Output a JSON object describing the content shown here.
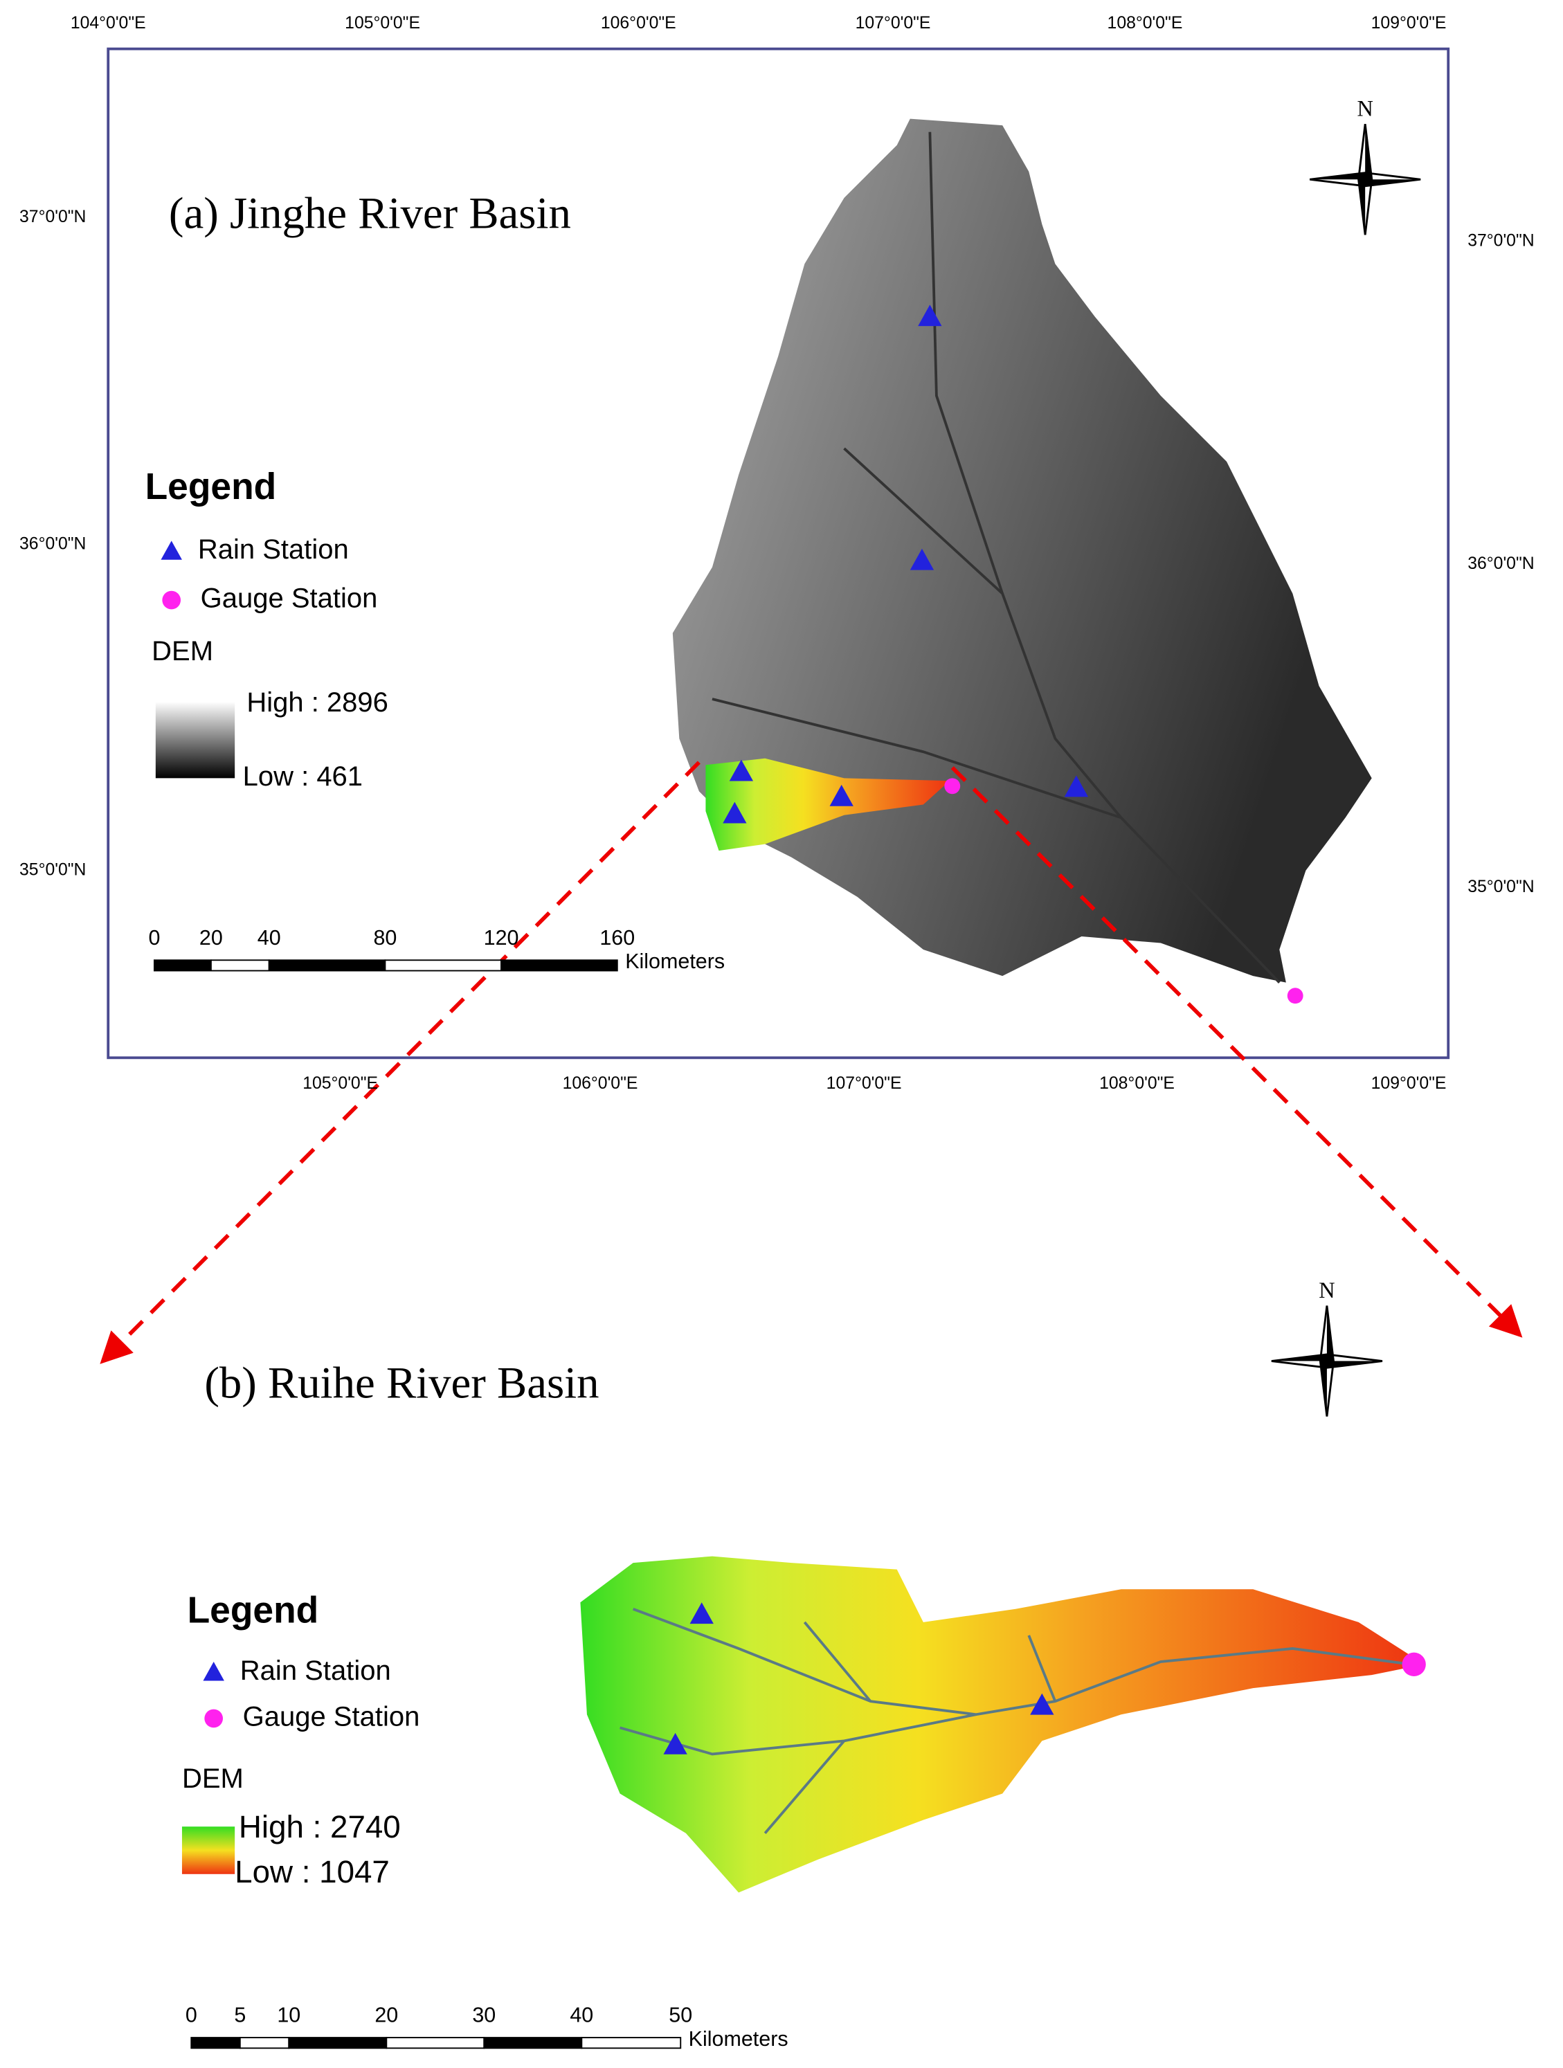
{
  "panel_a": {
    "title": "(a) Jinghe River Basin",
    "north": "N",
    "top_longitudes": [
      "104°0'0\"E",
      "105°0'0\"E",
      "106°0'0\"E",
      "107°0'0\"E",
      "108°0'0\"E",
      "109°0'0\"E"
    ],
    "bottom_longitudes": [
      "105°0'0\"E",
      "106°0'0\"E",
      "107°0'0\"E",
      "108°0'0\"E",
      "109°0'0\"E"
    ],
    "left_latitudes": [
      "37°0'0\"N",
      "36°0'0\"N",
      "35°0'0\"N"
    ],
    "right_latitudes": [
      "37°0'0\"N",
      "36°0'0\"N",
      "35°0'0\"N"
    ],
    "legend": {
      "title": "Legend",
      "items": [
        "Rain Station",
        "Gauge Station"
      ],
      "dem_title": "DEM",
      "high": "High : 2896",
      "low": "Low : 461"
    },
    "scale_bar": {
      "ticks": [
        0,
        20,
        40,
        80,
        120,
        160
      ],
      "unit": "Kilometers"
    }
  },
  "panel_b": {
    "title": "(b) Ruihe River Basin",
    "north": "N",
    "legend": {
      "title": "Legend",
      "items": [
        "Rain Station",
        "Gauge Station"
      ],
      "dem_title": "DEM",
      "high": "High : 2740",
      "low": "Low : 1047"
    },
    "scale_bar": {
      "ticks": [
        0,
        5,
        10,
        20,
        30,
        40,
        50
      ],
      "unit": "Kilometers"
    }
  }
}
